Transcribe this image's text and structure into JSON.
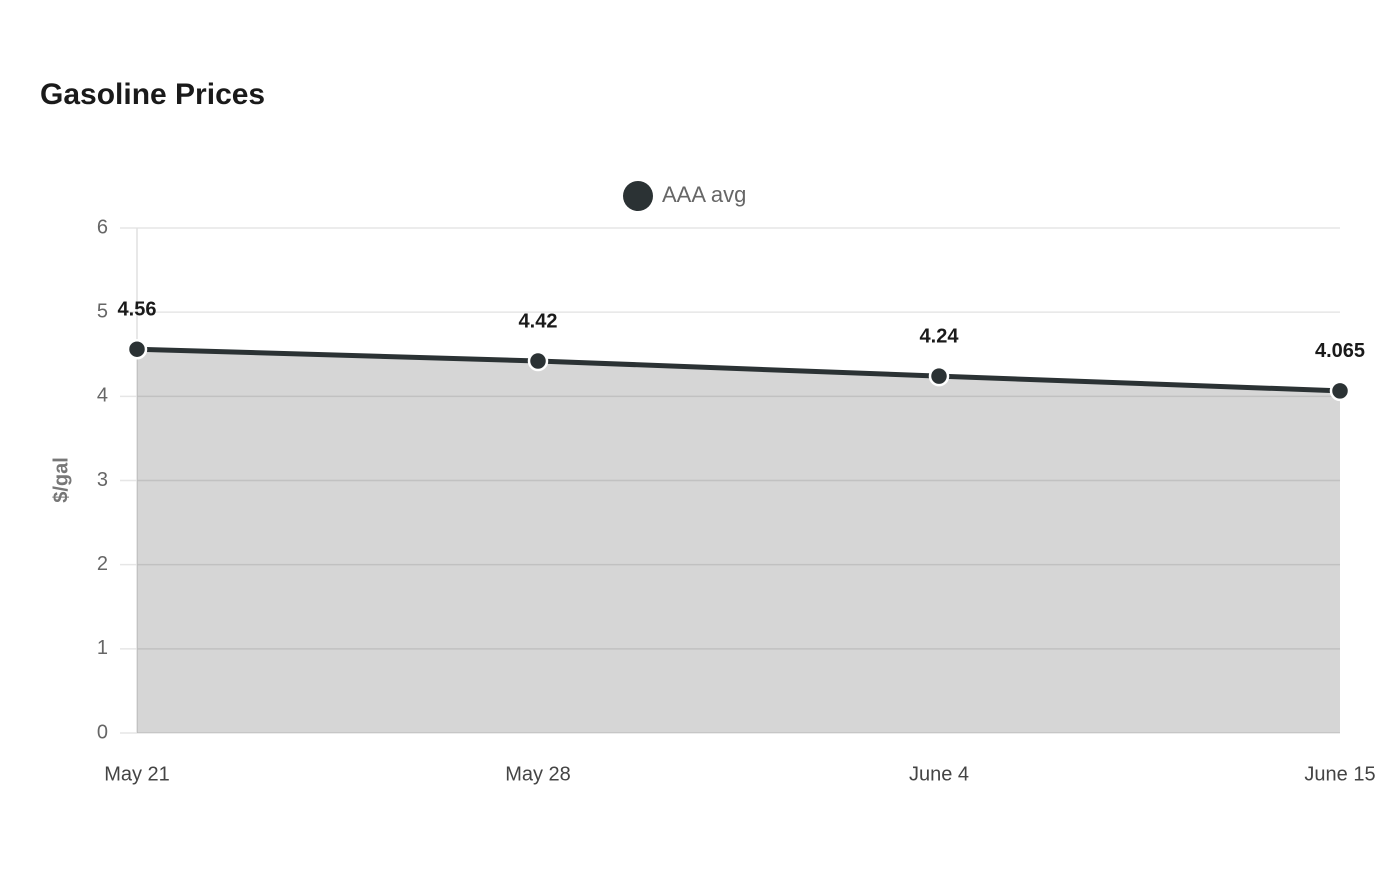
{
  "chart_data": {
    "type": "area",
    "title": "Gasoline Prices",
    "y_label": "$/gal",
    "categories": [
      "May 21",
      "May 28",
      "June 4",
      "June 15"
    ],
    "series": [
      {
        "name": "AAA avg",
        "color": "#2b3234",
        "values": [
          4.56,
          4.42,
          4.24,
          4.065
        ]
      }
    ],
    "ylim": [
      0,
      6
    ],
    "yticks": [
      0,
      1,
      2,
      3,
      4,
      5,
      6
    ],
    "grid": true,
    "legend": "top"
  }
}
